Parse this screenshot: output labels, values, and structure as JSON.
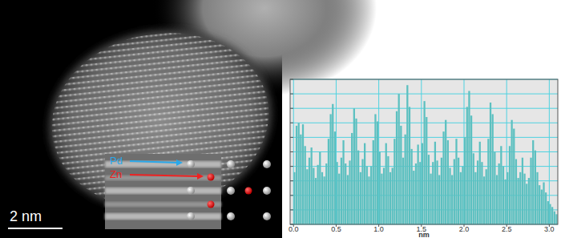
{
  "chart_data": {
    "type": "histogram",
    "xlabel": "nm",
    "color": "#5cc0c0",
    "grid": true,
    "tick_labels": "x",
    "xlim": [
      -0.04,
      3.1
    ],
    "xticks": [
      {
        "value": 0,
        "label": "0.0"
      },
      {
        "value": 0.5,
        "label": "0.5"
      },
      {
        "value": 1,
        "label": "1.0"
      },
      {
        "value": 1.5,
        "label": "1.5"
      },
      {
        "value": 2,
        "label": "2.0"
      },
      {
        "value": 2.5,
        "label": "2.5"
      },
      {
        "value": 3,
        "label": "3.0"
      }
    ],
    "ylim": [
      0,
      10
    ],
    "yticks": [
      0,
      1,
      2,
      3,
      4,
      5,
      6,
      7,
      8,
      9,
      10
    ],
    "bins": [
      0,
      0.025,
      0.05,
      0.075,
      0.1,
      0.125,
      0.15,
      0.175,
      0.2,
      0.225,
      0.25,
      0.275,
      0.3,
      0.325,
      0.35,
      0.375,
      0.4,
      0.425,
      0.45,
      0.475,
      0.5,
      0.525,
      0.55,
      0.575,
      0.6,
      0.625,
      0.65,
      0.675,
      0.7,
      0.725,
      0.75,
      0.775,
      0.8,
      0.825,
      0.85,
      0.875,
      0.9,
      0.925,
      0.95,
      0.975,
      1,
      1.025,
      1.05,
      1.075,
      1.1,
      1.125,
      1.15,
      1.175,
      1.2,
      1.225,
      1.25,
      1.275,
      1.3,
      1.325,
      1.35,
      1.375,
      1.4,
      1.425,
      1.45,
      1.475,
      1.5,
      1.525,
      1.55,
      1.575,
      1.6,
      1.625,
      1.65,
      1.675,
      1.7,
      1.725,
      1.75,
      1.775,
      1.8,
      1.825,
      1.85,
      1.875,
      1.9,
      1.925,
      1.95,
      1.975,
      2,
      2.025,
      2.05,
      2.075,
      2.1,
      2.125,
      2.15,
      2.175,
      2.2,
      2.225,
      2.25,
      2.275,
      2.3,
      2.325,
      2.35,
      2.375,
      2.4,
      2.425,
      2.45,
      2.475,
      2.5,
      2.525,
      2.55,
      2.575,
      2.6,
      2.625,
      2.65,
      2.675,
      2.7,
      2.725,
      2.75,
      2.775,
      2.8,
      2.825,
      2.85,
      2.875,
      2.9,
      2.925,
      2.95,
      2.975,
      3,
      3.025,
      3.05,
      3.075,
      3.1
    ],
    "values": [
      3.6,
      6.8,
      7.0,
      6.2,
      6.9,
      5.4,
      3.8,
      4.6,
      5.3,
      3.9,
      3.2,
      4.1,
      5.0,
      3.6,
      3.3,
      4.2,
      5.9,
      7.6,
      8.3,
      6.4,
      4.3,
      3.5,
      4.6,
      5.8,
      4.2,
      3.4,
      4.4,
      6.3,
      8.0,
      7.3,
      5.1,
      3.6,
      4.5,
      5.6,
      4.0,
      3.3,
      4.0,
      5.8,
      7.6,
      7.1,
      5.0,
      3.5,
      3.9,
      5.6,
      4.7,
      3.6,
      3.9,
      5.9,
      7.8,
      9.0,
      6.8,
      4.6,
      6.2,
      9.6,
      8.1,
      5.2,
      3.7,
      4.2,
      5.5,
      4.3,
      5.6,
      8.5,
      7.4,
      4.8,
      3.5,
      4.3,
      5.7,
      4.4,
      3.4,
      4.6,
      6.4,
      7.2,
      5.8,
      3.9,
      3.4,
      4.5,
      5.9,
      4.6,
      3.6,
      4.0,
      6.0,
      8.1,
      9.2,
      7.5,
      4.9,
      3.6,
      4.4,
      5.7,
      4.3,
      3.3,
      3.8,
      5.9,
      8.4,
      7.6,
      5.0,
      3.4,
      4.2,
      5.4,
      4.0,
      3.1,
      3.6,
      5.4,
      7.2,
      6.6,
      4.5,
      3.2,
      3.6,
      4.6,
      3.5,
      2.8,
      3.2,
      4.6,
      5.8,
      5.1,
      3.6,
      2.7,
      2.4,
      2.9,
      2.2,
      1.6,
      1.4,
      1.2,
      0.9,
      0.7
    ]
  },
  "micrograph": {
    "scale_bar": "2 nm",
    "labels": [
      {
        "text": "Pd",
        "color": "#2aa8ea"
      },
      {
        "text": "Zn",
        "color": "#ee2222"
      }
    ]
  }
}
